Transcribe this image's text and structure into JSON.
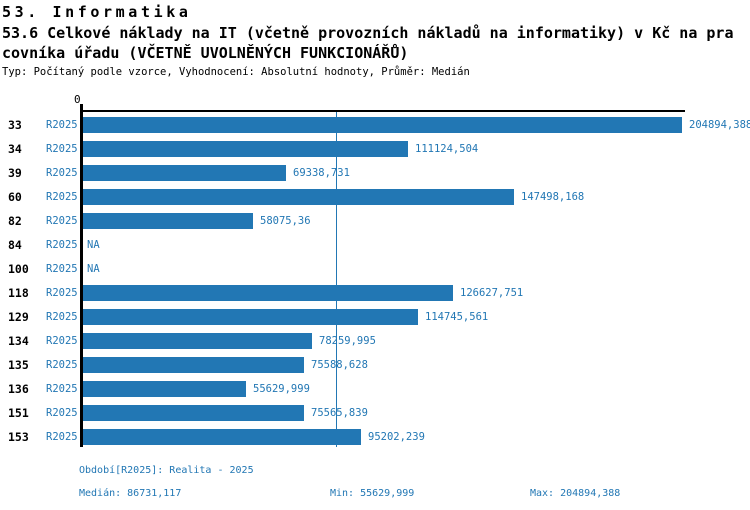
{
  "header": {
    "line1": "53. Informatika",
    "line2": "53.6 Celkové náklady na IT (včetně provozních nákladů na informatiky) v Kč na pra",
    "line3": "covníka úřadu (VČETNĚ UVOLNĚNÝCH FUNKCIONÁŘŮ)",
    "subtitle": "Typ: Počítaný podle vzorce, Vyhodnocení: Absolutní hodnoty, Průměr: Medián"
  },
  "chart_data": {
    "type": "bar",
    "orientation": "horizontal",
    "title": "53.6 Celkové náklady na IT (včetně provozních nákladů na informatiky) v Kč na pracovníka úřadu (VČETNĚ UVOLNĚNÝCH FUNKCIONÁŘŮ)",
    "origin_label": "0",
    "series_label": "R2025",
    "na_label": "NA",
    "categories": [
      "33",
      "34",
      "39",
      "60",
      "82",
      "84",
      "100",
      "118",
      "129",
      "134",
      "135",
      "136",
      "151",
      "153"
    ],
    "values": [
      204894.388,
      111124.504,
      69338.731,
      147498.168,
      58075.36,
      null,
      null,
      126627.751,
      114745.561,
      78259.995,
      75588.628,
      55629.999,
      75565.839,
      95202.239
    ],
    "value_labels": [
      "204894,388",
      "111124,504",
      "69338,731",
      "147498,168",
      "58075,36",
      "NA",
      "NA",
      "126627,751",
      "114745,561",
      "78259,995",
      "75588,628",
      "55629,999",
      "75565,839",
      "95202,239"
    ],
    "xlim": [
      0,
      204894.388
    ],
    "median_line_value": 86731.117,
    "bar_color": "#2277b4",
    "grid": "single vertical median gridline",
    "legend_position": "none"
  },
  "footer": {
    "period": "Období[R2025]: Realita - 2025",
    "median": "Medián: 86731,117",
    "min": "Min: 55629,999",
    "max": "Max: 204894,388"
  }
}
